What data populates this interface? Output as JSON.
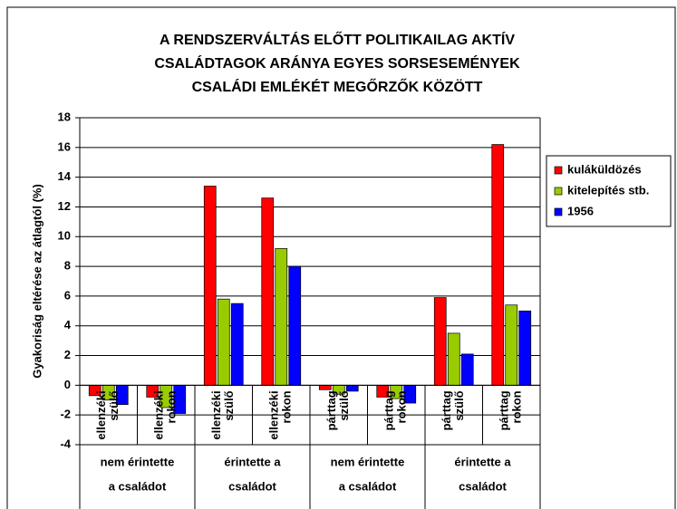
{
  "chart_data": {
    "type": "bar",
    "title": [
      "A RENDSZERVÁLTÁS ELŐTT POLITIKAILAG AKTÍV",
      "CSALÁDTAGOK ARÁNYA EGYES SORSESEMÉNYEK",
      "CSALÁDI EMLÉKÉT MEGŐRZŐK KÖZÖTT"
    ],
    "y_label": "Gyakoriság eltérése az átlagtól (%)",
    "categories": [
      [
        "ellenzéki",
        "szülő"
      ],
      [
        "ellenzéki",
        "rokon"
      ],
      [
        "ellenzéki",
        "szülő"
      ],
      [
        "ellenzéki",
        "rokon"
      ],
      [
        "párttag",
        "szülő"
      ],
      [
        "párttag",
        "rokon"
      ],
      [
        "párttag",
        "szülő"
      ],
      [
        "párttag",
        "rokon"
      ]
    ],
    "groups": [
      [
        "nem érintette",
        "a családot"
      ],
      [
        "érintette a",
        "családot"
      ],
      [
        "nem érintette",
        "a családot"
      ],
      [
        "érintette a",
        "családot"
      ]
    ],
    "series": [
      {
        "name": "kuláküldözés",
        "color": "#ff0000",
        "values": [
          -0.7,
          -0.8,
          13.4,
          12.6,
          -0.3,
          -0.8,
          5.9,
          16.2
        ]
      },
      {
        "name": "kitelepítés stb.",
        "color": "#99cc00",
        "values": [
          -1.0,
          -1.5,
          5.8,
          9.2,
          -0.6,
          -0.9,
          3.5,
          5.4
        ]
      },
      {
        "name": "1956",
        "color": "#0000ff",
        "values": [
          -1.3,
          -1.9,
          5.5,
          8.0,
          -0.4,
          -1.2,
          2.1,
          5.0
        ]
      }
    ],
    "ylim": [
      -4,
      18
    ],
    "yticks": [
      -4,
      -2,
      0,
      2,
      4,
      6,
      8,
      10,
      12,
      14,
      16,
      18
    ],
    "grid": true,
    "legend": "right"
  }
}
